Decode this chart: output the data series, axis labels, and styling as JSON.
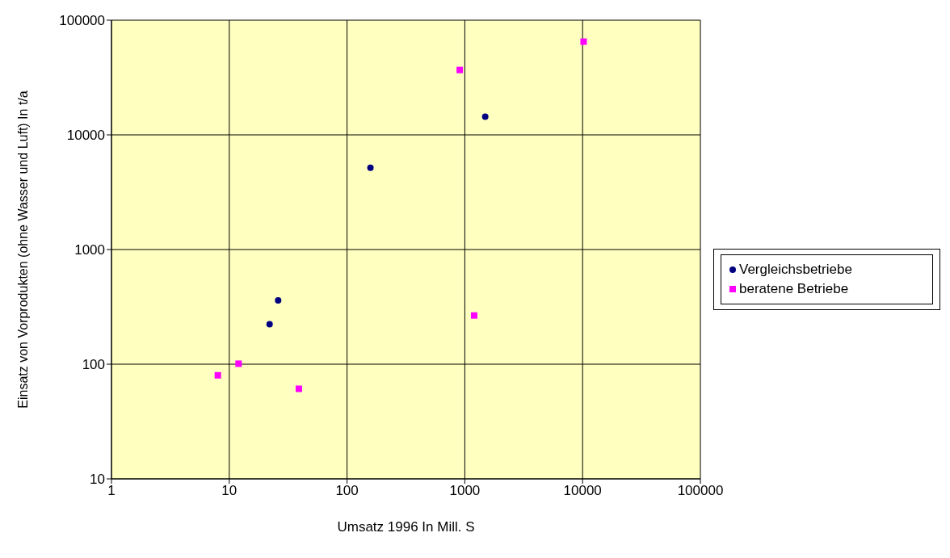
{
  "chart_data": {
    "type": "scatter",
    "xlabel": "Umsatz 1996    In Mill. S",
    "ylabel": "Einsatz von Vorprodukten (ohne Wasser und Luft)    In t/a",
    "log": "xy",
    "xlim": [
      1,
      100000
    ],
    "xticks": [
      1,
      10,
      100,
      1000,
      10000,
      100000
    ],
    "ylim": [
      10,
      100000
    ],
    "yticks": [
      10,
      100,
      1000,
      10000,
      100000
    ],
    "grid": true,
    "legend": "right",
    "series": [
      {
        "name": "Vergleichsbetriebe",
        "color": "#000080",
        "marker": "circle",
        "x": [
          22,
          26,
          158,
          1490
        ],
        "values": [
          223,
          360,
          5160,
          14400
        ]
      },
      {
        "name": "beratene Betriebe",
        "color": "#ff00ff",
        "marker": "square",
        "x": [
          8,
          12,
          39,
          906,
          1200,
          10200
        ],
        "values": [
          80,
          101,
          61,
          36800,
          266,
          65000
        ]
      }
    ]
  }
}
